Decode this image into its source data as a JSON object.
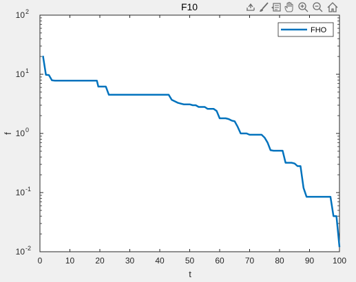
{
  "toolbar": {
    "icons": [
      "export-icon",
      "brush-icon",
      "datatip-icon",
      "pan-icon",
      "zoom-in-icon",
      "zoom-out-icon",
      "home-icon"
    ]
  },
  "colors": {
    "background": "#f0f0f0",
    "axes_face": "#ffffff",
    "series": "#0072bd"
  },
  "chart_data": {
    "type": "line",
    "title": "F10",
    "xlabel": "t",
    "ylabel": "f",
    "xlim": [
      0,
      100
    ],
    "ylim": [
      0.01,
      100
    ],
    "yscale": "log",
    "grid": false,
    "legend_position": "top-right",
    "x_ticks": [
      "0",
      "10",
      "20",
      "30",
      "40",
      "50",
      "60",
      "70",
      "80",
      "90",
      "100"
    ],
    "y_ticks": [
      {
        "base": "10",
        "exp": "-2"
      },
      {
        "base": "10",
        "exp": "-1"
      },
      {
        "base": "10",
        "exp": "0"
      },
      {
        "base": "10",
        "exp": "1"
      },
      {
        "base": "10",
        "exp": "2"
      }
    ],
    "series": [
      {
        "name": "FHO",
        "x": [
          1,
          2,
          3,
          4,
          5,
          10,
          15,
          19,
          19.5,
          20,
          21,
          22,
          23,
          30,
          35,
          40,
          43,
          44,
          45,
          46,
          47,
          48,
          49,
          50,
          51,
          52,
          53,
          54,
          55,
          56,
          57,
          58,
          59,
          60,
          61,
          62,
          63,
          64,
          65,
          66,
          67,
          68,
          69,
          70,
          71,
          72,
          73,
          74,
          75,
          76,
          77,
          78,
          79,
          80,
          81,
          82,
          83,
          84,
          85,
          86,
          87,
          88,
          89,
          90,
          95,
          97,
          98,
          99,
          100
        ],
        "y": [
          20.5,
          9.8,
          9.7,
          7.9,
          7.8,
          7.8,
          7.8,
          7.8,
          6.2,
          6.2,
          6.2,
          6.2,
          4.5,
          4.5,
          4.5,
          4.5,
          4.5,
          3.7,
          3.5,
          3.3,
          3.2,
          3.1,
          3.1,
          3.1,
          3.0,
          3.0,
          2.8,
          2.8,
          2.8,
          2.6,
          2.6,
          2.6,
          2.4,
          1.8,
          1.8,
          1.8,
          1.75,
          1.65,
          1.6,
          1.3,
          1.0,
          1.0,
          1.0,
          0.95,
          0.95,
          0.95,
          0.95,
          0.95,
          0.85,
          0.7,
          0.52,
          0.51,
          0.51,
          0.51,
          0.51,
          0.32,
          0.32,
          0.32,
          0.31,
          0.28,
          0.28,
          0.12,
          0.085,
          0.085,
          0.085,
          0.085,
          0.04,
          0.04,
          0.012
        ]
      }
    ]
  }
}
